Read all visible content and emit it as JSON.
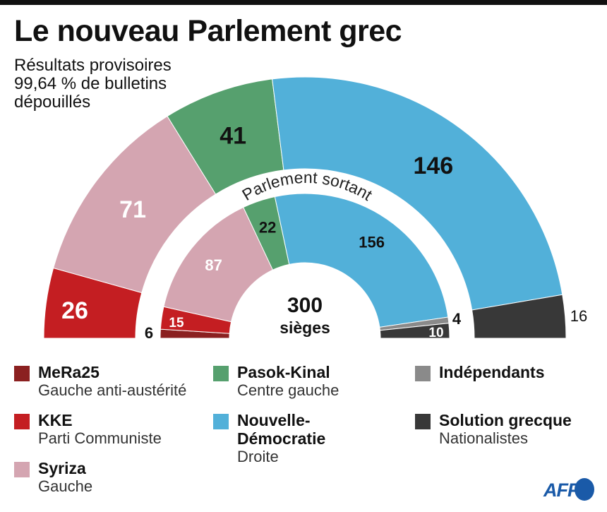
{
  "header": {
    "title": "Le nouveau Parlement grec",
    "subtitle_lines": [
      "Résultats provisoires",
      "99,64 % de bulletins",
      "dépouillés"
    ]
  },
  "chart_data": {
    "type": "pie",
    "subtype": "parliament-semicircle",
    "title": "Le nouveau Parlement grec",
    "subtitle": "Résultats provisoires 99,64 % de bulletins dépouillés",
    "total_seats": 300,
    "center_label": {
      "value": "300",
      "unit": "sièges"
    },
    "inner_ring_label": "Parlement sortant",
    "parties": [
      {
        "key": "mera25",
        "name": "MeRa25",
        "description": "Gauche anti-austérité",
        "color": "#8b2020"
      },
      {
        "key": "kke",
        "name": "KKE",
        "description": "Parti Communiste",
        "color": "#c41e22"
      },
      {
        "key": "syriza",
        "name": "Syriza",
        "description": "Gauche",
        "color": "#d4a5b1"
      },
      {
        "key": "pasok",
        "name": "Pasok-Kinal",
        "description": "Centre gauche",
        "color": "#56a06e"
      },
      {
        "key": "nd",
        "name": "Nouvelle-Démocratie",
        "name_lines": [
          "Nouvelle-",
          "Démocratie"
        ],
        "description": "Droite",
        "color": "#52b0d9"
      },
      {
        "key": "indep",
        "name": "Indépendants",
        "description": "",
        "color": "#8a8a8a"
      },
      {
        "key": "solution",
        "name": "Solution grecque",
        "description": "Nationalistes",
        "color": "#383838"
      }
    ],
    "series": [
      {
        "name": "Nouveau Parlement",
        "ring": "outer",
        "values": [
          {
            "party": "mera25",
            "seats": 0,
            "label": ""
          },
          {
            "party": "kke",
            "seats": 26,
            "label": "26",
            "label_color": "#ffffff"
          },
          {
            "party": "syriza",
            "seats": 71,
            "label": "71",
            "label_color": "#ffffff"
          },
          {
            "party": "pasok",
            "seats": 41,
            "label": "41",
            "label_color": "#111111"
          },
          {
            "party": "nd",
            "seats": 146,
            "label": "146",
            "label_color": "#111111"
          },
          {
            "party": "indep",
            "seats": 0,
            "label": ""
          },
          {
            "party": "solution",
            "seats": 16,
            "label": "16",
            "label_color": "#111111",
            "label_outside": true
          }
        ]
      },
      {
        "name": "Parlement sortant",
        "ring": "inner",
        "values": [
          {
            "party": "mera25",
            "seats": 6,
            "label": "6",
            "label_color": "#111111",
            "label_outside": true
          },
          {
            "party": "kke",
            "seats": 15,
            "label": "15",
            "label_color": "#ffffff"
          },
          {
            "party": "syriza",
            "seats": 87,
            "label": "87",
            "label_color": "#ffffff"
          },
          {
            "party": "pasok",
            "seats": 22,
            "label": "22",
            "label_color": "#111111"
          },
          {
            "party": "nd",
            "seats": 156,
            "label": "156",
            "label_color": "#111111"
          },
          {
            "party": "indep",
            "seats": 4,
            "label": "4",
            "label_color": "#111111",
            "label_outside": true
          },
          {
            "party": "solution",
            "seats": 10,
            "label": "10",
            "label_color": "#ffffff"
          }
        ]
      }
    ]
  },
  "legend": {
    "items": [
      {
        "party": "mera25",
        "name": "MeRa25",
        "description": "Gauche anti-austérité"
      },
      {
        "party": "kke",
        "name": "KKE",
        "description": "Parti Communiste"
      },
      {
        "party": "syriza",
        "name": "Syriza",
        "description": "Gauche"
      },
      {
        "party": "pasok",
        "name": "Pasok-Kinal",
        "description": "Centre gauche"
      },
      {
        "party": "nd",
        "name_line1": "Nouvelle-",
        "name_line2": "Démocratie",
        "description": "Droite"
      },
      {
        "party": "indep",
        "name": "Indépendants"
      },
      {
        "party": "solution",
        "name": "Solution grecque",
        "description": "Nationalistes"
      }
    ]
  },
  "credit": {
    "logo_text": "AFP",
    "logo_color": "#1a5aa8"
  }
}
